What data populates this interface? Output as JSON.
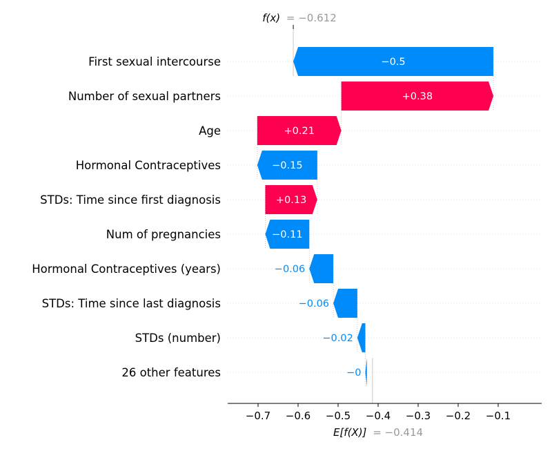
{
  "chart_data": {
    "type": "waterfall",
    "features": [
      {
        "name": "First sexual intercourse",
        "value": -0.5,
        "label": "−0.5"
      },
      {
        "name": "Number of sexual partners",
        "value": 0.38,
        "label": "+0.38"
      },
      {
        "name": "Age",
        "value": 0.21,
        "label": "+0.21"
      },
      {
        "name": "Hormonal Contraceptives",
        "value": -0.15,
        "label": "−0.15"
      },
      {
        "name": "STDs: Time since first diagnosis",
        "value": 0.13,
        "label": "+0.13"
      },
      {
        "name": "Num of pregnancies",
        "value": -0.11,
        "label": "−0.11"
      },
      {
        "name": "Hormonal Contraceptives (years)",
        "value": -0.06,
        "label": "−0.06"
      },
      {
        "name": "STDs: Time since last diagnosis",
        "value": -0.06,
        "label": "−0.06"
      },
      {
        "name": "STDs (number)",
        "value": -0.02,
        "label": "−0.02"
      },
      {
        "name": "26 other features",
        "value": -0.004,
        "label": "−0"
      }
    ],
    "base_value": -0.414,
    "final_value": -0.612,
    "fx_label": "f(x)",
    "fx_value_text": "= −0.612",
    "efx_label": "E[f(X)]",
    "efx_value_text": "= −0.414",
    "xlim": [
      -0.79,
      -0.0
    ],
    "xticks": [
      -0.7,
      -0.6,
      -0.5,
      -0.4,
      -0.3,
      -0.2,
      -0.1
    ],
    "xtick_labels": [
      "−0.7",
      "−0.6",
      "−0.5",
      "−0.4",
      "−0.3",
      "−0.2",
      "−0.1"
    ],
    "colors": {
      "positive": "#ff0051",
      "negative": "#008bfb",
      "grid": "#cccccc"
    }
  }
}
